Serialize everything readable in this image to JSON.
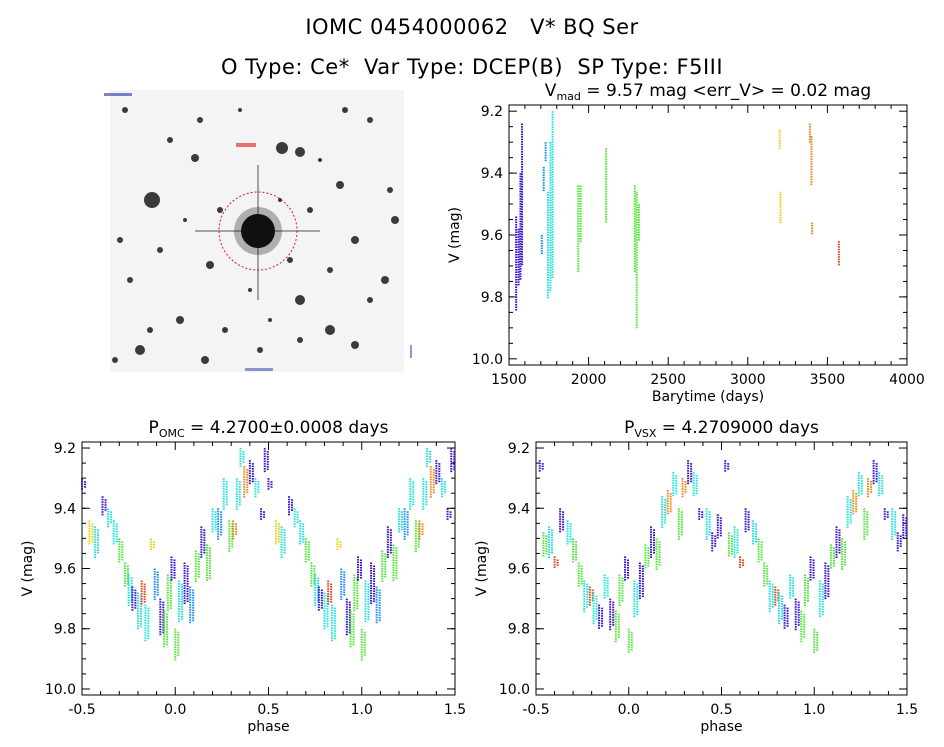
{
  "header": {
    "title": "IOMC 0454000062   V* BQ Ser",
    "subtitle": "O Type: Ce*  Var Type: DCEP(B)  SP Type: F5III"
  },
  "thumbnail": {
    "caption_top": "",
    "marker_label": ""
  },
  "colors": {
    "s1": "#3a12c8",
    "s2": "#1e8cf0",
    "s3": "#26e0dc",
    "s4": "#52e63a",
    "s5": "#e6d21a",
    "s6": "#e68a18",
    "s7": "#d8461c"
  },
  "chart_data": [
    {
      "type": "scatter",
      "id": "timeseries",
      "title_main": "V",
      "title_sub": "mad",
      "title_rest": " = 9.57 mag <err_V> = 0.02 mag",
      "xlabel": "Barytime (days)",
      "ylabel": "V (mag)",
      "xlim": [
        1500,
        4000
      ],
      "ylim": [
        10.02,
        9.18
      ],
      "xticks": [
        1500,
        2000,
        2500,
        3000,
        3500,
        4000
      ],
      "yticks": [
        9.2,
        9.4,
        9.6,
        9.8,
        10.0
      ],
      "segments": [
        {
          "x": 1545,
          "ymin": 9.54,
          "ymax": 9.84,
          "c": "s1"
        },
        {
          "x": 1560,
          "ymin": 9.58,
          "ymax": 9.76,
          "c": "s1"
        },
        {
          "x": 1572,
          "ymin": 9.4,
          "ymax": 9.74,
          "c": "s1"
        },
        {
          "x": 1582,
          "ymin": 9.24,
          "ymax": 9.7,
          "c": "s1"
        },
        {
          "x": 1706,
          "ymin": 9.6,
          "ymax": 9.66,
          "c": "s2"
        },
        {
          "x": 1718,
          "ymin": 9.38,
          "ymax": 9.46,
          "c": "s2"
        },
        {
          "x": 1730,
          "ymin": 9.3,
          "ymax": 9.36,
          "c": "s2"
        },
        {
          "x": 1745,
          "ymin": 9.46,
          "ymax": 9.8,
          "c": "s3"
        },
        {
          "x": 1760,
          "ymin": 9.3,
          "ymax": 9.78,
          "c": "s3"
        },
        {
          "x": 1774,
          "ymin": 9.2,
          "ymax": 9.74,
          "c": "s3"
        },
        {
          "x": 1935,
          "ymin": 9.44,
          "ymax": 9.72,
          "c": "s4"
        },
        {
          "x": 1950,
          "ymin": 9.44,
          "ymax": 9.62,
          "c": "s4"
        },
        {
          "x": 2110,
          "ymin": 9.32,
          "ymax": 9.56,
          "c": "s4"
        },
        {
          "x": 2290,
          "ymin": 9.44,
          "ymax": 9.72,
          "c": "s4"
        },
        {
          "x": 2302,
          "ymin": 9.46,
          "ymax": 9.9,
          "c": "s4"
        },
        {
          "x": 2316,
          "ymin": 9.5,
          "ymax": 9.62,
          "c": "s4"
        },
        {
          "x": 3200,
          "ymin": 9.26,
          "ymax": 9.32,
          "c": "s5"
        },
        {
          "x": 3205,
          "ymin": 9.46,
          "ymax": 9.56,
          "c": "s5"
        },
        {
          "x": 3390,
          "ymin": 9.24,
          "ymax": 9.3,
          "c": "s6"
        },
        {
          "x": 3400,
          "ymin": 9.28,
          "ymax": 9.44,
          "c": "s6"
        },
        {
          "x": 3404,
          "ymin": 9.56,
          "ymax": 9.6,
          "c": "s6"
        },
        {
          "x": 3572,
          "ymin": 9.62,
          "ymax": 9.7,
          "c": "s7"
        }
      ]
    },
    {
      "type": "scatter",
      "id": "phase_omc",
      "title_main": "P",
      "title_sub": "OMC",
      "title_rest": " = 4.2700±0.0008 days",
      "xlabel": "phase",
      "ylabel": "V (mag)",
      "xlim": [
        -0.5,
        1.5
      ],
      "ylim": [
        10.02,
        9.18
      ],
      "xticks": [
        -0.5,
        0.0,
        0.5,
        1.0,
        1.5
      ],
      "yticks": [
        9.2,
        9.4,
        9.6,
        9.8,
        10.0
      ],
      "clusters": [
        {
          "p": -0.5,
          "ymin": 9.3,
          "ymax": 9.34,
          "c": "s1"
        },
        {
          "p": -0.46,
          "ymin": 9.44,
          "ymax": 9.52,
          "c": "s5"
        },
        {
          "p": -0.43,
          "ymin": 9.46,
          "ymax": 9.56,
          "c": "s3"
        },
        {
          "p": -0.39,
          "ymin": 9.36,
          "ymax": 9.42,
          "c": "s1"
        },
        {
          "p": -0.36,
          "ymin": 9.4,
          "ymax": 9.46,
          "c": "s3"
        },
        {
          "p": -0.33,
          "ymin": 9.44,
          "ymax": 9.52,
          "c": "s3"
        },
        {
          "p": -0.3,
          "ymin": 9.5,
          "ymax": 9.58,
          "c": "s4"
        },
        {
          "p": -0.27,
          "ymin": 9.58,
          "ymax": 9.66,
          "c": "s4"
        },
        {
          "p": -0.25,
          "ymin": 9.62,
          "ymax": 9.72,
          "c": "s3"
        },
        {
          "p": -0.23,
          "ymin": 9.66,
          "ymax": 9.74,
          "c": "s1"
        },
        {
          "p": -0.2,
          "ymin": 9.68,
          "ymax": 9.8,
          "c": "s3"
        },
        {
          "p": -0.18,
          "ymin": 9.64,
          "ymax": 9.72,
          "c": "s7"
        },
        {
          "p": -0.16,
          "ymin": 9.72,
          "ymax": 9.84,
          "c": "s3"
        },
        {
          "p": -0.13,
          "ymin": 9.5,
          "ymax": 9.54,
          "c": "s5"
        },
        {
          "p": -0.11,
          "ymin": 9.6,
          "ymax": 9.7,
          "c": "s2"
        },
        {
          "p": -0.08,
          "ymin": 9.7,
          "ymax": 9.82,
          "c": "s1"
        },
        {
          "p": -0.06,
          "ymin": 9.74,
          "ymax": 9.86,
          "c": "s4"
        },
        {
          "p": -0.04,
          "ymin": 9.62,
          "ymax": 9.74,
          "c": "s4"
        },
        {
          "p": -0.02,
          "ymin": 9.56,
          "ymax": 9.64,
          "c": "s1"
        },
        {
          "p": 0.0,
          "ymin": 9.8,
          "ymax": 9.9,
          "c": "s4"
        },
        {
          "p": 0.02,
          "ymin": 9.64,
          "ymax": 9.78,
          "c": "s3"
        },
        {
          "p": 0.05,
          "ymin": 9.58,
          "ymax": 9.72,
          "c": "s1"
        },
        {
          "p": 0.08,
          "ymin": 9.66,
          "ymax": 9.78,
          "c": "s2"
        },
        {
          "p": 0.11,
          "ymin": 9.54,
          "ymax": 9.64,
          "c": "s4"
        },
        {
          "p": 0.14,
          "ymin": 9.46,
          "ymax": 9.56,
          "c": "s1"
        },
        {
          "p": 0.17,
          "ymin": 9.52,
          "ymax": 9.64,
          "c": "s4"
        },
        {
          "p": 0.2,
          "ymin": 9.4,
          "ymax": 9.48,
          "c": "s3"
        },
        {
          "p": 0.23,
          "ymin": 9.4,
          "ymax": 9.5,
          "c": "s2"
        },
        {
          "p": 0.26,
          "ymin": 9.3,
          "ymax": 9.4,
          "c": "s3"
        },
        {
          "p": 0.29,
          "ymin": 9.44,
          "ymax": 9.54,
          "c": "s4"
        },
        {
          "p": 0.31,
          "ymin": 9.44,
          "ymax": 9.5,
          "c": "s6"
        },
        {
          "p": 0.33,
          "ymin": 9.3,
          "ymax": 9.4,
          "c": "s3"
        },
        {
          "p": 0.35,
          "ymin": 9.2,
          "ymax": 9.26,
          "c": "s3"
        },
        {
          "p": 0.37,
          "ymin": 9.26,
          "ymax": 9.36,
          "c": "s6"
        },
        {
          "p": 0.4,
          "ymin": 9.24,
          "ymax": 9.32,
          "c": "s1"
        },
        {
          "p": 0.43,
          "ymin": 9.3,
          "ymax": 9.36,
          "c": "s3"
        },
        {
          "p": 0.46,
          "ymin": 9.4,
          "ymax": 9.44,
          "c": "s1"
        },
        {
          "p": 0.48,
          "ymin": 9.2,
          "ymax": 9.28,
          "c": "s1"
        }
      ]
    },
    {
      "type": "scatter",
      "id": "phase_vsx",
      "title_main": "P",
      "title_sub": "VSX",
      "title_rest": " = 4.2709000 days",
      "xlabel": "phase",
      "ylabel": "V (mag)",
      "xlim": [
        -0.5,
        1.5
      ],
      "ylim": [
        10.02,
        9.18
      ],
      "xticks": [
        -0.5,
        0.0,
        0.5,
        1.0,
        1.5
      ],
      "yticks": [
        9.2,
        9.4,
        9.6,
        9.8,
        10.0
      ],
      "clusters": [
        {
          "p": -0.48,
          "ymin": 9.24,
          "ymax": 9.28,
          "c": "s1"
        },
        {
          "p": -0.46,
          "ymin": 9.48,
          "ymax": 9.56,
          "c": "s4"
        },
        {
          "p": -0.43,
          "ymin": 9.46,
          "ymax": 9.56,
          "c": "s3"
        },
        {
          "p": -0.4,
          "ymin": 9.56,
          "ymax": 9.6,
          "c": "s7"
        },
        {
          "p": -0.37,
          "ymin": 9.4,
          "ymax": 9.48,
          "c": "s1"
        },
        {
          "p": -0.33,
          "ymin": 9.44,
          "ymax": 9.52,
          "c": "s3"
        },
        {
          "p": -0.3,
          "ymin": 9.5,
          "ymax": 9.58,
          "c": "s4"
        },
        {
          "p": -0.27,
          "ymin": 9.58,
          "ymax": 9.66,
          "c": "s4"
        },
        {
          "p": -0.24,
          "ymin": 9.64,
          "ymax": 9.74,
          "c": "s3"
        },
        {
          "p": -0.21,
          "ymin": 9.66,
          "ymax": 9.72,
          "c": "s7"
        },
        {
          "p": -0.19,
          "ymin": 9.68,
          "ymax": 9.78,
          "c": "s3"
        },
        {
          "p": -0.16,
          "ymin": 9.72,
          "ymax": 9.8,
          "c": "s1"
        },
        {
          "p": -0.13,
          "ymin": 9.62,
          "ymax": 9.7,
          "c": "s3"
        },
        {
          "p": -0.1,
          "ymin": 9.7,
          "ymax": 9.8,
          "c": "s1"
        },
        {
          "p": -0.07,
          "ymin": 9.74,
          "ymax": 9.84,
          "c": "s4"
        },
        {
          "p": -0.05,
          "ymin": 9.62,
          "ymax": 9.72,
          "c": "s4"
        },
        {
          "p": -0.02,
          "ymin": 9.56,
          "ymax": 9.64,
          "c": "s1"
        },
        {
          "p": 0.0,
          "ymin": 9.8,
          "ymax": 9.88,
          "c": "s4"
        },
        {
          "p": 0.03,
          "ymin": 9.64,
          "ymax": 9.76,
          "c": "s3"
        },
        {
          "p": 0.06,
          "ymin": 9.58,
          "ymax": 9.7,
          "c": "s1"
        },
        {
          "p": 0.09,
          "ymin": 9.52,
          "ymax": 9.6,
          "c": "s4"
        },
        {
          "p": 0.12,
          "ymin": 9.46,
          "ymax": 9.56,
          "c": "s1"
        },
        {
          "p": 0.15,
          "ymin": 9.5,
          "ymax": 9.6,
          "c": "s4"
        },
        {
          "p": 0.18,
          "ymin": 9.36,
          "ymax": 9.46,
          "c": "s3"
        },
        {
          "p": 0.21,
          "ymin": 9.34,
          "ymax": 9.42,
          "c": "s6"
        },
        {
          "p": 0.24,
          "ymin": 9.28,
          "ymax": 9.36,
          "c": "s3"
        },
        {
          "p": 0.27,
          "ymin": 9.4,
          "ymax": 9.5,
          "c": "s4"
        },
        {
          "p": 0.29,
          "ymin": 9.3,
          "ymax": 9.36,
          "c": "s6"
        },
        {
          "p": 0.32,
          "ymin": 9.24,
          "ymax": 9.32,
          "c": "s1"
        },
        {
          "p": 0.35,
          "ymin": 9.28,
          "ymax": 9.36,
          "c": "s3"
        },
        {
          "p": 0.38,
          "ymin": 9.4,
          "ymax": 9.44,
          "c": "s1"
        },
        {
          "p": 0.42,
          "ymin": 9.4,
          "ymax": 9.5,
          "c": "s3"
        },
        {
          "p": 0.45,
          "ymin": 9.48,
          "ymax": 9.54,
          "c": "s1"
        },
        {
          "p": 0.48,
          "ymin": 9.42,
          "ymax": 9.5,
          "c": "s1"
        }
      ]
    }
  ]
}
